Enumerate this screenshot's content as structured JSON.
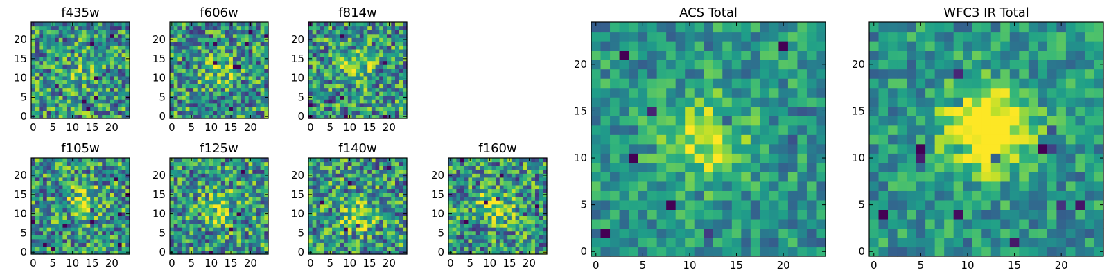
{
  "chart_data": [
    {
      "type": "heatmap",
      "title": "f435w",
      "colormap": "viridis",
      "grid": false,
      "pixels": [
        25,
        25
      ],
      "xlim": [
        0,
        24
      ],
      "ylim": [
        0,
        24
      ],
      "xticks": [
        "0",
        "5",
        "10",
        "15",
        "20"
      ],
      "yticks": [
        "0",
        "5",
        "10",
        "15",
        "20"
      ],
      "blob": {
        "x": 12,
        "y": 11,
        "strength": 0.15
      }
    },
    {
      "type": "heatmap",
      "title": "f606w",
      "colormap": "viridis",
      "grid": false,
      "pixels": [
        25,
        25
      ],
      "xlim": [
        0,
        24
      ],
      "ylim": [
        0,
        24
      ],
      "xticks": [
        "0",
        "5",
        "10",
        "15",
        "20"
      ],
      "yticks": [
        "0",
        "5",
        "10",
        "15",
        "20"
      ],
      "blob": {
        "x": 12,
        "y": 12,
        "strength": 0.25
      }
    },
    {
      "type": "heatmap",
      "title": "f814w",
      "colormap": "viridis",
      "grid": false,
      "pixels": [
        25,
        25
      ],
      "xlim": [
        0,
        24
      ],
      "ylim": [
        0,
        24
      ],
      "xticks": [
        "0",
        "5",
        "10",
        "15",
        "20"
      ],
      "yticks": [
        "0",
        "5",
        "10",
        "15",
        "20"
      ],
      "blob": {
        "x": 12,
        "y": 12,
        "strength": 0.3
      }
    },
    {
      "type": "heatmap",
      "title": "f105w",
      "colormap": "viridis",
      "grid": false,
      "pixels": [
        25,
        25
      ],
      "xlim": [
        0,
        24
      ],
      "ylim": [
        0,
        24
      ],
      "xticks": [
        "0",
        "5",
        "10",
        "15",
        "20"
      ],
      "yticks": [
        "0",
        "5",
        "10",
        "15",
        "20"
      ],
      "blob": {
        "x": 13,
        "y": 13,
        "strength": 0.35
      }
    },
    {
      "type": "heatmap",
      "title": "f125w",
      "colormap": "viridis",
      "grid": false,
      "pixels": [
        25,
        25
      ],
      "xlim": [
        0,
        24
      ],
      "ylim": [
        0,
        24
      ],
      "xticks": [
        "0",
        "5",
        "10",
        "15",
        "20"
      ],
      "yticks": [
        "0",
        "5",
        "10",
        "15",
        "20"
      ],
      "blob": {
        "x": 12,
        "y": 12,
        "strength": 0.3
      }
    },
    {
      "type": "heatmap",
      "title": "f140w",
      "colormap": "viridis",
      "grid": false,
      "pixels": [
        25,
        25
      ],
      "xlim": [
        0,
        24
      ],
      "ylim": [
        0,
        24
      ],
      "xticks": [
        "0",
        "5",
        "10",
        "15",
        "20"
      ],
      "yticks": [
        "0",
        "5",
        "10",
        "15",
        "20"
      ],
      "blob": {
        "x": 12,
        "y": 10,
        "strength": 0.35
      }
    },
    {
      "type": "heatmap",
      "title": "f160w",
      "colormap": "viridis",
      "grid": false,
      "pixels": [
        25,
        25
      ],
      "xlim": [
        0,
        24
      ],
      "ylim": [
        0,
        24
      ],
      "xticks": [
        "0",
        "5",
        "10",
        "15",
        "20"
      ],
      "yticks": [
        "0",
        "5",
        "10",
        "15",
        "20"
      ],
      "blob": {
        "x": 11,
        "y": 12,
        "strength": 0.4
      }
    },
    {
      "type": "heatmap",
      "title": "ACS Total",
      "colormap": "viridis",
      "grid": false,
      "pixels": [
        25,
        25
      ],
      "xlim": [
        0,
        24
      ],
      "ylim": [
        0,
        24
      ],
      "xticks": [
        "0",
        "5",
        "10",
        "15",
        "20"
      ],
      "yticks": [
        "0",
        "5",
        "10",
        "15",
        "20"
      ],
      "blob": {
        "x": 12,
        "y": 12,
        "strength": 0.4
      }
    },
    {
      "type": "heatmap",
      "title": "WFC3 IR Total",
      "colormap": "viridis",
      "grid": false,
      "pixels": [
        25,
        25
      ],
      "xlim": [
        0,
        24
      ],
      "ylim": [
        0,
        24
      ],
      "xticks": [
        "0",
        "5",
        "10",
        "15",
        "20"
      ],
      "yticks": [
        "0",
        "5",
        "10",
        "15",
        "20"
      ],
      "blob": {
        "x": 12,
        "y": 13,
        "strength": 0.7
      }
    }
  ]
}
